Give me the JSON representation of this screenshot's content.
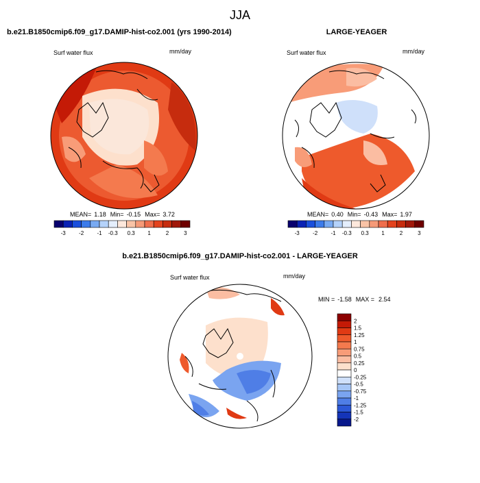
{
  "page": {
    "season": "JJA",
    "panel_a_title": "b.e21.B1850cmip6.f09_g17.DAMIP-hist-co2.001 (yrs 1990-2014)",
    "panel_b_title": "LARGE-YEAGER",
    "panel_c_title": "b.e21.B1850cmip6.f09_g17.DAMIP-hist-co2.001 - LARGE-YEAGER"
  },
  "chart_data": [
    {
      "type": "heatmap",
      "projection": "north-polar-stereographic",
      "variable_label": "Surf water flux",
      "units": "mm/day",
      "stats": {
        "mean_label": "MEAN=",
        "mean": "1.18",
        "min_label": "Min=",
        "min": "-0.15",
        "max_label": "Max=",
        "max": "3.72"
      },
      "colorbar": {
        "orientation": "horizontal",
        "tick_labels": [
          "-3",
          "-2",
          "-1",
          "-0.3",
          "0.3",
          "1",
          "2",
          "3"
        ],
        "colors": [
          "#08006e",
          "#0a22b4",
          "#1a4fdc",
          "#3c7bea",
          "#78aaf2",
          "#b4d2fa",
          "#e4eefc",
          "#fde8dc",
          "#f9c3a6",
          "#f59a78",
          "#ef6e4c",
          "#e3431e",
          "#c62c0e",
          "#a0180a",
          "#6e0000"
        ]
      },
      "notes": "Moist (positive) over most of Arctic ocean and land; near 0.3-1 over central Arctic"
    },
    {
      "type": "heatmap",
      "projection": "north-polar-stereographic",
      "variable_label": "Surf water flux",
      "units": "mm/day",
      "stats": {
        "mean_label": "MEAN=",
        "mean": "0.40",
        "min_label": "Min=",
        "min": "-0.43",
        "max_label": "Max=",
        "max": "1.97"
      },
      "colorbar": {
        "orientation": "horizontal",
        "tick_labels": [
          "-3",
          "-2",
          "-1",
          "-0.3",
          "0.3",
          "1",
          "2",
          "3"
        ],
        "colors": [
          "#08006e",
          "#0a22b4",
          "#1a4fdc",
          "#3c7bea",
          "#78aaf2",
          "#b4d2fa",
          "#e4eefc",
          "#fde8dc",
          "#f9c3a6",
          "#f59a78",
          "#ef6e4c",
          "#e3431e",
          "#c62c0e",
          "#a0180a",
          "#6e0000"
        ]
      },
      "notes": "Ocean-only field; land masked white"
    },
    {
      "type": "heatmap",
      "projection": "north-polar-stereographic",
      "variable_label": "Surf water flux",
      "units": "mm/day",
      "stats": {
        "min_label": "MIN =",
        "min": "-1.58",
        "max_label": "MAX =",
        "max": "2.54"
      },
      "colorbar": {
        "orientation": "vertical",
        "tick_labels": [
          "2",
          "1.5",
          "1.25",
          "1",
          "0.75",
          "0.5",
          "0.25",
          "0",
          "-0.25",
          "-0.5",
          "-0.75",
          "-1",
          "-1.25",
          "-1.5",
          "-2"
        ],
        "colors": [
          "#8c0000",
          "#c41a06",
          "#e03a14",
          "#ee5a2c",
          "#f47a4e",
          "#f89c78",
          "#fbbda2",
          "#fde0cc",
          "#ffffff",
          "#cfe0fa",
          "#a6c6f6",
          "#7aa4f0",
          "#4f7ee6",
          "#2c58d6",
          "#1434b8",
          "#08188c"
        ]
      },
      "notes": "Difference field, ocean-only"
    }
  ]
}
